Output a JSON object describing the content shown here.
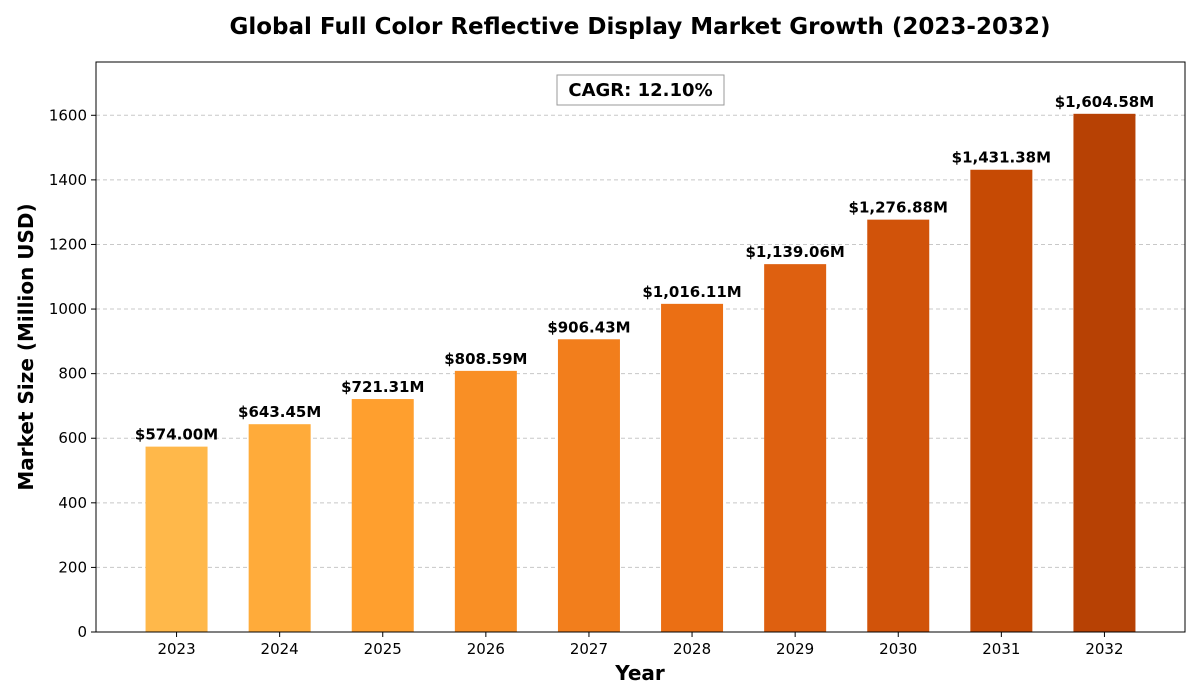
{
  "chart_data": {
    "type": "bar",
    "title": "Global Full Color Reflective Display Market Growth (2023-2032)",
    "xlabel": "Year",
    "ylabel": "Market Size (Million USD)",
    "categories": [
      "2023",
      "2024",
      "2025",
      "2026",
      "2027",
      "2028",
      "2029",
      "2030",
      "2031",
      "2032"
    ],
    "values": [
      574.0,
      643.45,
      721.31,
      808.59,
      906.43,
      1016.11,
      1139.06,
      1276.88,
      1431.38,
      1604.58
    ],
    "data_labels": [
      "$574.00M",
      "$643.45M",
      "$721.31M",
      "$808.59M",
      "$906.43M",
      "$1,016.11M",
      "$1,139.06M",
      "$1,276.88M",
      "$1,431.38M",
      "$1,604.58M"
    ],
    "ylim": [
      0,
      1765
    ],
    "yticks": [
      0,
      200,
      400,
      600,
      800,
      1000,
      1200,
      1400,
      1600
    ],
    "grid": "y-dashed",
    "annotation": "CAGR: 12.10%",
    "annotation_position": "top-center",
    "colors": [
      "#ffb84a",
      "#ffab3a",
      "#ff9f2e",
      "#f98f25",
      "#f27e1c",
      "#eb6f14",
      "#de6010",
      "#d1530a",
      "#c64a04",
      "#b74104"
    ]
  }
}
